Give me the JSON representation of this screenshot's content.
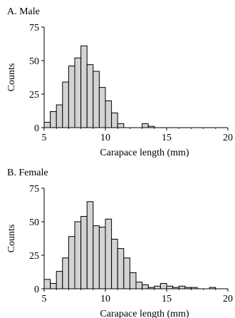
{
  "chart_data": [
    {
      "type": "bar",
      "panel_title": "A. Male",
      "xlabel": "Carapace length (mm)",
      "ylabel": "Counts",
      "bin_width": 0.5,
      "bin_start": 5.0,
      "values": [
        4,
        12,
        17,
        34,
        46,
        52,
        61,
        47,
        42,
        30,
        20,
        11,
        3,
        0,
        0,
        0,
        3,
        1
      ],
      "xlim": [
        5,
        20
      ],
      "ylim": [
        0,
        75
      ],
      "xticks": [
        "5",
        "10",
        "15",
        "20"
      ],
      "yticks": [
        "0",
        "25",
        "50",
        "75"
      ],
      "grid": false,
      "bar_color": "#d3d3d3"
    },
    {
      "type": "bar",
      "panel_title": "B. Female",
      "xlabel": "Carapace length (mm)",
      "ylabel": "Counts",
      "bin_width": 0.5,
      "bin_start": 5.0,
      "values": [
        7,
        4,
        13,
        23,
        39,
        50,
        54,
        65,
        47,
        46,
        52,
        37,
        30,
        23,
        12,
        5,
        3,
        1,
        2,
        4,
        2,
        1,
        2,
        1,
        1,
        0,
        0,
        1
      ],
      "xlim": [
        5,
        20
      ],
      "ylim": [
        0,
        75
      ],
      "xticks": [
        "5",
        "10",
        "15",
        "20"
      ],
      "yticks": [
        "0",
        "25",
        "50",
        "75"
      ],
      "grid": false,
      "bar_color": "#d3d3d3"
    }
  ]
}
